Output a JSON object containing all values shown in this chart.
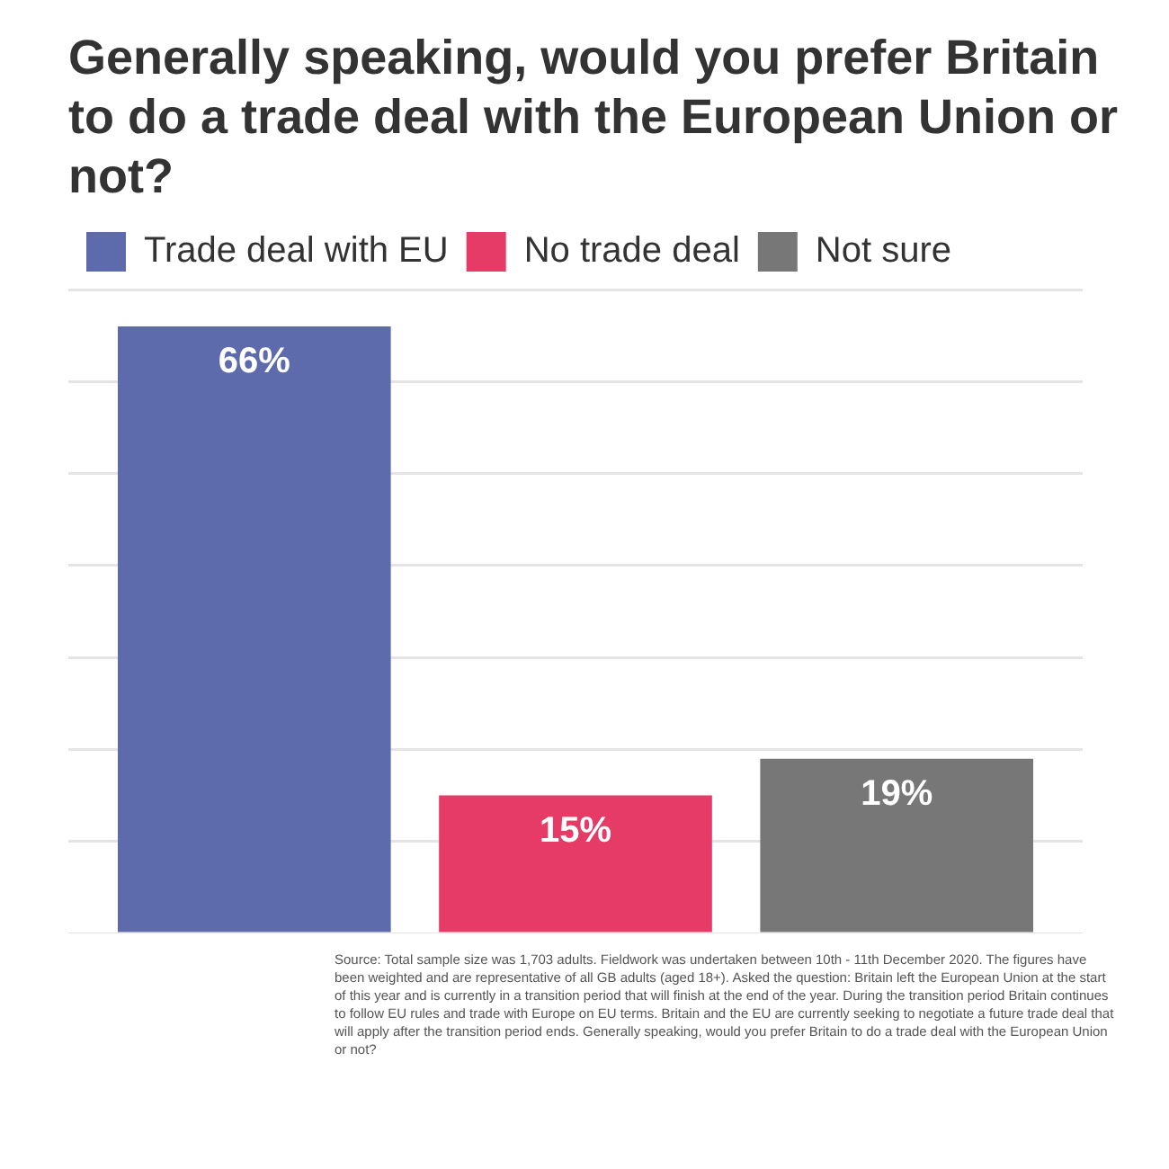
{
  "chart_data": {
    "type": "bar",
    "title": "Generally speaking, would you prefer Britain to do a trade deal with the European Union or not?",
    "categories": [
      null
    ],
    "series": [
      {
        "name": "Trade deal with EU",
        "color": "#5d6aac",
        "values": [
          66
        ],
        "value_labels": [
          "66%"
        ]
      },
      {
        "name": "No trade deal",
        "color": "#e63a67",
        "values": [
          15
        ],
        "value_labels": [
          "15%"
        ]
      },
      {
        "name": "Not sure",
        "color": "#777777",
        "values": [
          19
        ],
        "value_labels": [
          "19%"
        ]
      }
    ],
    "grid": "y",
    "legend": "top left",
    "annotations": [
      "Source: Total sample size was 1,703 adults. Fieldwork was undertaken between 10th - 11th December 2020. The figures have been weighted and are representative of all GB adults (aged 18+). Asked the question: Britain left the European Union at the start of this year and is currently in a transition period that will finish at the end of the year. During the transition period Britain continues to follow EU rules and trade with Europe on EU terms. Britain and the EU are currently seeking to negotiate a future trade deal that will apply after the transition period ends. Generally speaking, would you prefer Britain to do a trade deal with the European Union or not?"
    ]
  }
}
